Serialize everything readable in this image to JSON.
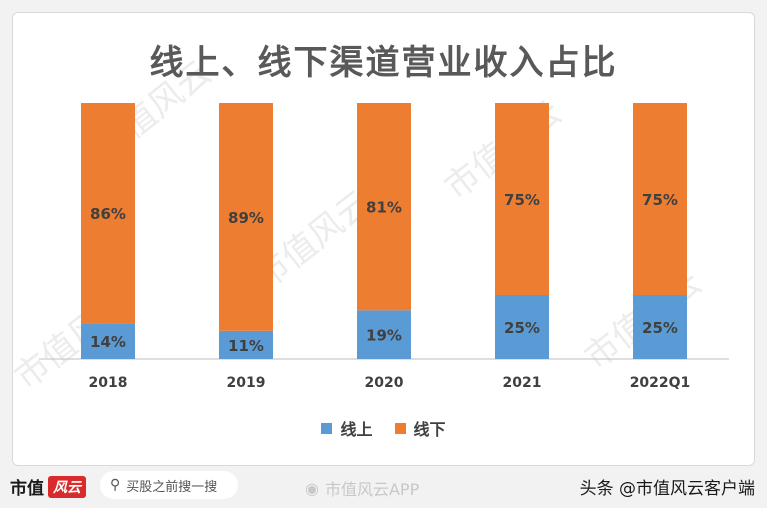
{
  "chart_data": {
    "type": "bar",
    "stacked": true,
    "title": "线上、线下渠道营业收入占比",
    "categories": [
      "2018",
      "2019",
      "2020",
      "2021",
      "2022Q1"
    ],
    "series": [
      {
        "name": "线上",
        "values": [
          14,
          11,
          19,
          25,
          25
        ],
        "labels": [
          "14%",
          "11%",
          "19%",
          "25%",
          "25%"
        ],
        "color": "#5b9bd5"
      },
      {
        "name": "线下",
        "values": [
          86,
          89,
          81,
          75,
          75
        ],
        "labels": [
          "86%",
          "89%",
          "81%",
          "75%",
          "75%"
        ],
        "color": "#ed7d31"
      }
    ],
    "ylim": [
      0,
      100
    ],
    "grid": false,
    "legend_position": "bottom"
  },
  "watermark_text": "市值风云",
  "footer": {
    "brand_text": "市值",
    "brand_badge": "风云",
    "search_placeholder": "买股之前搜一搜",
    "search_icon": "search-icon",
    "weibo_text": "市值风云APP",
    "weibo_icon": "weibo-icon",
    "toutiao_text": "头条 @市值风云客户端"
  }
}
